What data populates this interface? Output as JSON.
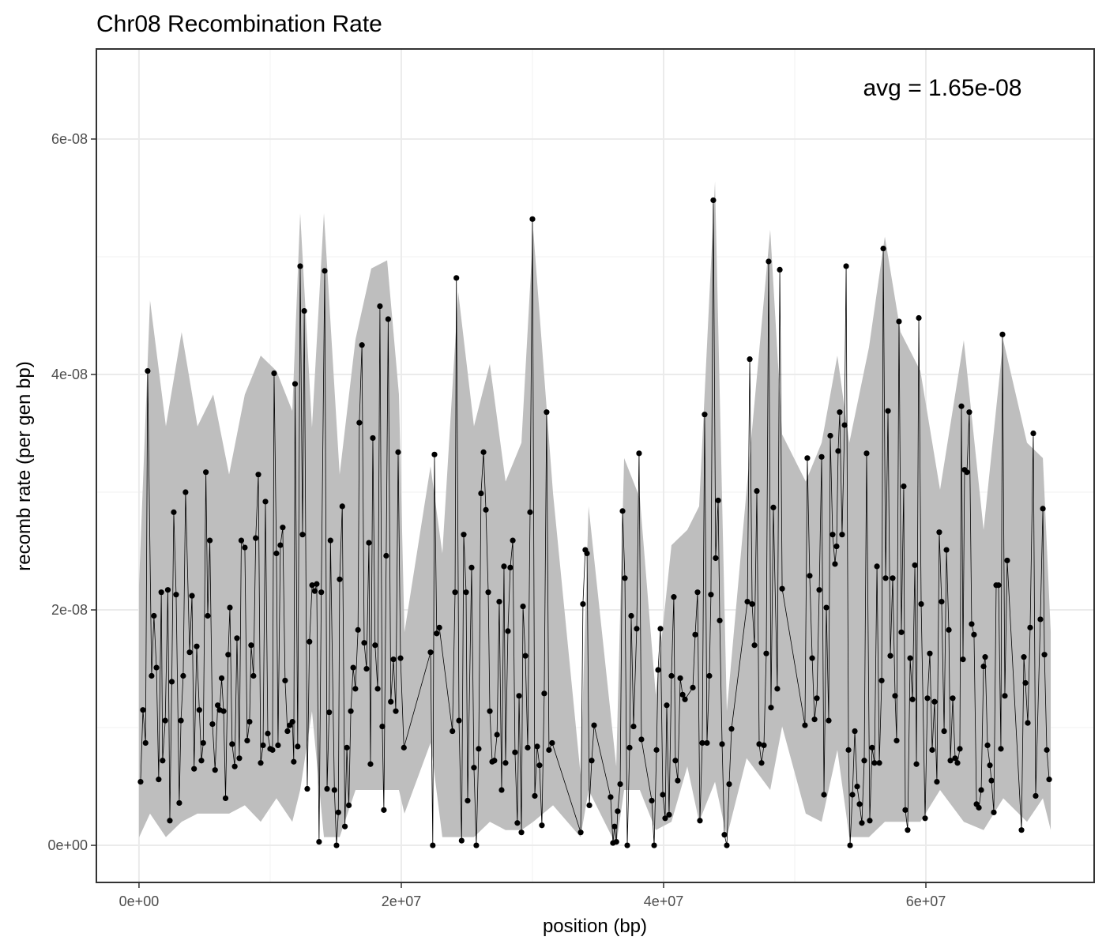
{
  "chart_data": {
    "type": "line",
    "title": "Chr08 Recombination Rate",
    "xlabel": "position (bp)",
    "ylabel": "recomb rate (per gen bp)",
    "annotation": "avg = 1.65e-08",
    "color": "#000000",
    "grid": true,
    "xlim": [
      -3250000,
      72830000
    ],
    "ylim": [
      -3.15e-09,
      6.765e-08
    ],
    "xticks": [
      {
        "value": 0,
        "label": "0e+00"
      },
      {
        "value": 20000000,
        "label": "2e+07"
      },
      {
        "value": 40000000,
        "label": "4e+07"
      },
      {
        "value": 60000000,
        "label": "6e+07"
      }
    ],
    "yticks": [
      {
        "value": 0,
        "label": "0e+00"
      },
      {
        "value": 2e-08,
        "label": "2e-08"
      },
      {
        "value": 4e-08,
        "label": "4e-08"
      },
      {
        "value": 6e-08,
        "label": "6e-08"
      }
    ],
    "x": [
      120000.0,
      300000.0,
      500000.0,
      660000.0,
      960000.0,
      1140000.0,
      1330000.0,
      1500000.0,
      1700000.0,
      1800000.0,
      2000000.0,
      2200000.0,
      2350000.0,
      2500000.0,
      2650000.0,
      2830000.0,
      3070000.0,
      3200000.0,
      3370000.0,
      3550000.0,
      3860000.0,
      4040000.0,
      4200000.0,
      4400000.0,
      4600000.0,
      4760000.0,
      4900000.0,
      5100000.0,
      5240000.0,
      5400000.0,
      5600000.0,
      5800000.0,
      6000000.0,
      6150000.0,
      6300000.0,
      6450000.0,
      6600000.0,
      6800000.0,
      6930000.0,
      7100000.0,
      7300000.0,
      7470000.0,
      7650000.0,
      7800000.0,
      8070000.0,
      8250000.0,
      8430000.0,
      8550000.0,
      8730000.0,
      8900000.0,
      9100000.0,
      9280000.0,
      9460000.0,
      9640000.0,
      9820000.0,
      10000000.0,
      10180000.0,
      10300000.0,
      10480000.0,
      10600000.0,
      10780000.0,
      10960000.0,
      11140000.0,
      11320000.0,
      11500000.0,
      11700000.0,
      11800000.0,
      11900000.0,
      12100000.0,
      12290000.0,
      12470000.0,
      12600000.0,
      12830000.0,
      13000000.0,
      13200000.0,
      13400000.0,
      13550000.0,
      13730000.0,
      13900000.0,
      14160000.0,
      14340000.0,
      14500000.0,
      14600000.0,
      14900000.0,
      15060000.0,
      15200000.0,
      15300000.0,
      15500000.0,
      15700000.0,
      15850000.0,
      16000000.0,
      16150000.0,
      16330000.0,
      16500000.0,
      16700000.0,
      16800000.0,
      17000000.0,
      17170000.0,
      17350000.0,
      17530000.0,
      17650000.0,
      17830000.0,
      18000000.0,
      18200000.0,
      18370000.0,
      18550000.0,
      18670000.0,
      18850000.0,
      19000000.0,
      19200000.0,
      19400000.0,
      19580000.0,
      19760000.0,
      19940000.0,
      20200000.0,
      22230000.0,
      22400000.0,
      22530000.0,
      22700000.0,
      22900000.0,
      23900000.0,
      24100000.0,
      24200000.0,
      24400000.0,
      24600000.0,
      24760000.0,
      24940000.0,
      25060000.0,
      25360000.0,
      25540000.0,
      25720000.0,
      25900000.0,
      26080000.0,
      26270000.0,
      26450000.0,
      26630000.0,
      26750000.0,
      26930000.0,
      27100000.0,
      27300000.0,
      27470000.0,
      27650000.0,
      27830000.0,
      27950000.0,
      28130000.0,
      28310000.0,
      28500000.0,
      28670000.0,
      28850000.0,
      28980000.0,
      29160000.0,
      29280000.0,
      29460000.0,
      29640000.0,
      29820000.0,
      30000000.0,
      30180000.0,
      30360000.0,
      30540000.0,
      30720000.0,
      30900000.0,
      31080000.0,
      31260000.0,
      31500000.0,
      33680000.0,
      33850000.0,
      34030000.0,
      34160000.0,
      34340000.0,
      34520000.0,
      34700000.0,
      35960000.0,
      36140000.0,
      36260000.0,
      36400000.0,
      36500000.0,
      36690000.0,
      36870000.0,
      37050000.0,
      37230000.0,
      37410000.0,
      37530000.0,
      37710000.0,
      37950000.0,
      38130000.0,
      38310000.0,
      39100000.0,
      39280000.0,
      39460000.0,
      39580000.0,
      39760000.0,
      39940000.0,
      40120000.0,
      40240000.0,
      40420000.0,
      40600000.0,
      40780000.0,
      40900000.0,
      41080000.0,
      41270000.0,
      41450000.0,
      41630000.0,
      42230000.0,
      42410000.0,
      42590000.0,
      42770000.0,
      42950000.0,
      43130000.0,
      43310000.0,
      43490000.0,
      43610000.0,
      43790000.0,
      43970000.0,
      44160000.0,
      44280000.0,
      44460000.0,
      44640000.0,
      44820000.0,
      45000000.0,
      45180000.0,
      46390000.0,
      46570000.0,
      46750000.0,
      46930000.0,
      47110000.0,
      47290000.0,
      47470000.0,
      47650000.0,
      47830000.0,
      48010000.0,
      48190000.0,
      48370000.0,
      48670000.0,
      48860000.0,
      49040000.0,
      50780000.0,
      50960000.0,
      51140000.0,
      51330000.0,
      51510000.0,
      51690000.0,
      51870000.0,
      52050000.0,
      52230000.0,
      52410000.0,
      52590000.0,
      52710000.0,
      52890000.0,
      53070000.0,
      53190000.0,
      53310000.0,
      53430000.0,
      53610000.0,
      53800000.0,
      53920000.0,
      54100000.0,
      54220000.0,
      54400000.0,
      54580000.0,
      54760000.0,
      54940000.0,
      55120000.0,
      55300000.0,
      55480000.0,
      55720000.0,
      55900000.0,
      56080000.0,
      56270000.0,
      56450000.0,
      56630000.0,
      56750000.0,
      56930000.0,
      57110000.0,
      57290000.0,
      57470000.0,
      57650000.0,
      57770000.0,
      57950000.0,
      58130000.0,
      58310000.0,
      58430000.0,
      58610000.0,
      58800000.0,
      58980000.0,
      59160000.0,
      59280000.0,
      59460000.0,
      59640000.0,
      59940000.0,
      60120000.0,
      60300000.0,
      60480000.0,
      60660000.0,
      60840000.0,
      61020000.0,
      61200000.0,
      61390000.0,
      61570000.0,
      61750000.0,
      61870000.0,
      62050000.0,
      62230000.0,
      62410000.0,
      62590000.0,
      62710000.0,
      62830000.0,
      62950000.0,
      63130000.0,
      63310000.0,
      63490000.0,
      63670000.0,
      63860000.0,
      64040000.0,
      64220000.0,
      64400000.0,
      64520000.0,
      64700000.0,
      64880000.0,
      65000000.0,
      65180000.0,
      65360000.0,
      65540000.0,
      65720000.0,
      65840000.0,
      66020000.0,
      66200000.0,
      67290000.0,
      67470000.0,
      67590000.0,
      67770000.0,
      67950000.0,
      68190000.0,
      68370000.0,
      68730000.0,
      68920000.0,
      69040000.0,
      69220000.0,
      69400000.0
    ],
    "values": [
      5.4e-09,
      1.15e-08,
      8.7e-09,
      4.03e-08,
      1.44e-08,
      1.95e-08,
      1.51e-08,
      5.6e-09,
      2.15e-08,
      7.2e-09,
      1.06e-08,
      2.17e-08,
      2.1e-09,
      1.39e-08,
      2.83e-08,
      2.13e-08,
      3.6e-09,
      1.06e-08,
      1.44e-08,
      3e-08,
      1.64e-08,
      2.12e-08,
      6.5e-09,
      1.69e-08,
      1.15e-08,
      7.2e-09,
      8.7e-09,
      3.17e-08,
      1.95e-08,
      2.59e-08,
      1.03e-08,
      6.4e-09,
      1.19e-08,
      1.15e-08,
      1.42e-08,
      1.14e-08,
      4e-09,
      1.62e-08,
      2.02e-08,
      8.6e-09,
      6.7e-09,
      1.76e-08,
      7.4e-09,
      2.59e-08,
      2.53e-08,
      8.9e-09,
      1.05e-08,
      1.7e-08,
      1.44e-08,
      2.61e-08,
      3.15e-08,
      7e-09,
      8.5e-09,
      2.92e-08,
      9.5e-09,
      8.2e-09,
      8.1e-09,
      4.01e-08,
      2.48e-08,
      8.5e-09,
      2.55e-08,
      2.7e-08,
      1.4e-08,
      9.7e-09,
      1.02e-08,
      1.05e-08,
      7.1e-09,
      3.92e-08,
      8.4e-09,
      4.92e-08,
      2.64e-08,
      4.54e-08,
      4.8e-09,
      1.73e-08,
      2.21e-08,
      2.16e-08,
      2.22e-08,
      3e-10,
      2.15e-08,
      4.88e-08,
      4.8e-09,
      1.13e-08,
      2.59e-08,
      4.7e-09,
      0,
      2.8e-09,
      2.26e-08,
      2.88e-08,
      1.6e-09,
      8.3e-09,
      3.4e-09,
      1.14e-08,
      1.51e-08,
      1.33e-08,
      1.83e-08,
      3.59e-08,
      4.25e-08,
      1.72e-08,
      1.5e-08,
      2.57e-08,
      6.9e-09,
      3.46e-08,
      1.7e-08,
      1.33e-08,
      4.58e-08,
      1.01e-08,
      3e-09,
      2.46e-08,
      4.47e-08,
      1.22e-08,
      1.58e-08,
      1.14e-08,
      3.34e-08,
      1.59e-08,
      8.3e-09,
      1.64e-08,
      0,
      3.32e-08,
      1.8e-08,
      1.85e-08,
      9.7e-09,
      2.15e-08,
      4.82e-08,
      1.06e-08,
      4e-10,
      2.64e-08,
      2.15e-08,
      3.8e-09,
      2.36e-08,
      6.6e-09,
      0,
      8.2e-09,
      2.99e-08,
      3.34e-08,
      2.85e-08,
      2.15e-08,
      1.14e-08,
      7.1e-09,
      7.2e-09,
      9.4e-09,
      2.07e-08,
      4.7e-09,
      2.37e-08,
      7e-09,
      1.82e-08,
      2.36e-08,
      2.59e-08,
      7.9e-09,
      1.9e-09,
      1.27e-08,
      1.1e-09,
      2.03e-08,
      1.61e-08,
      8.3e-09,
      2.83e-08,
      5.32e-08,
      4.2e-09,
      8.4e-09,
      6.8e-09,
      1.7e-09,
      1.29e-08,
      3.68e-08,
      8.1e-09,
      8.7e-09,
      1.1e-09,
      2.05e-08,
      2.51e-08,
      2.48e-08,
      3.4e-09,
      7.2e-09,
      1.02e-08,
      4.1e-09,
      2e-10,
      1.6e-09,
      3e-10,
      2.9e-09,
      5.2e-09,
      2.84e-08,
      2.27e-08,
      0,
      8.3e-09,
      1.95e-08,
      1.01e-08,
      1.84e-08,
      3.33e-08,
      9e-09,
      3.8e-09,
      0,
      8.1e-09,
      1.49e-08,
      1.84e-08,
      4.3e-09,
      2.3e-09,
      1.19e-08,
      2.6e-09,
      1.44e-08,
      2.11e-08,
      7.2e-09,
      5.5e-09,
      1.42e-08,
      1.28e-08,
      1.24e-08,
      1.34e-08,
      1.79e-08,
      2.15e-08,
      2.1e-09,
      8.7e-09,
      3.66e-08,
      8.7e-09,
      1.44e-08,
      2.13e-08,
      5.48e-08,
      2.44e-08,
      2.93e-08,
      1.91e-08,
      8.6e-09,
      9e-10,
      0,
      5.2e-09,
      9.9e-09,
      2.07e-08,
      4.13e-08,
      2.05e-08,
      1.7e-08,
      3.01e-08,
      8.6e-09,
      7e-09,
      8.5e-09,
      1.63e-08,
      4.96e-08,
      1.17e-08,
      2.87e-08,
      1.33e-08,
      4.89e-08,
      2.18e-08,
      1.02e-08,
      3.29e-08,
      2.29e-08,
      1.59e-08,
      1.07e-08,
      1.25e-08,
      2.17e-08,
      3.3e-08,
      4.3e-09,
      2.02e-08,
      1.06e-08,
      3.48e-08,
      2.64e-08,
      2.39e-08,
      2.54e-08,
      3.35e-08,
      3.68e-08,
      2.64e-08,
      3.57e-08,
      4.92e-08,
      8.1e-09,
      0,
      4.3e-09,
      9.7e-09,
      5e-09,
      3.5e-09,
      1.9e-09,
      7.2e-09,
      3.33e-08,
      2.1e-09,
      8.3e-09,
      7e-09,
      2.37e-08,
      7e-09,
      1.4e-08,
      5.07e-08,
      2.27e-08,
      3.69e-08,
      1.61e-08,
      2.27e-08,
      1.27e-08,
      8.9e-09,
      4.45e-08,
      1.81e-08,
      3.05e-08,
      3e-09,
      1.3e-09,
      1.59e-08,
      1.24e-08,
      2.38e-08,
      6.9e-09,
      4.48e-08,
      2.05e-08,
      2.3e-09,
      1.25e-08,
      1.63e-08,
      8.1e-09,
      1.22e-08,
      5.4e-09,
      2.66e-08,
      2.07e-08,
      9.7e-09,
      2.51e-08,
      1.83e-08,
      7.2e-09,
      1.25e-08,
      7.4e-09,
      7e-09,
      8.2e-09,
      3.73e-08,
      1.58e-08,
      3.19e-08,
      3.17e-08,
      3.68e-08,
      1.88e-08,
      1.79e-08,
      3.5e-09,
      3.2e-09,
      4.7e-09,
      1.52e-08,
      1.6e-08,
      8.5e-09,
      6.8e-09,
      5.5e-09,
      2.8e-09,
      2.21e-08,
      2.21e-08,
      8.2e-09,
      4.34e-08,
      1.27e-08,
      2.42e-08,
      1.3e-09,
      1.6e-08,
      1.38e-08,
      1.04e-08,
      1.85e-08,
      3.5e-08,
      4.2e-09,
      1.92e-08,
      2.86e-08,
      1.62e-08,
      8.1e-09,
      5.6e-09
    ],
    "ribbon": {
      "color": "#bebebe",
      "x": [
        0,
        840000.0,
        2050000.0,
        3250000.0,
        4460000.0,
        5660000.0,
        6870000.0,
        8070000.0,
        9280000.0,
        10480000.0,
        11690000.0,
        12290000.0,
        13190000.0,
        14100000.0,
        15300000.0,
        16510000.0,
        17710000.0,
        18920000.0,
        19820000.0,
        20240000.0,
        22230000.0,
        23130000.0,
        24340000.0,
        25540000.0,
        26750000.0,
        27950000.0,
        29160000.0,
        30060000.0,
        31570000.0,
        33670000.0,
        34280000.0,
        36390000.0,
        36990000.0,
        38190000.0,
        39400000.0,
        40600000.0,
        41810000.0,
        42710000.0,
        43920000.0,
        44820000.0,
        46330000.0,
        48130000.0,
        49040000.0,
        50840000.0,
        52050000.0,
        53250000.0,
        54160000.0,
        55660000.0,
        56870000.0,
        58070000.0,
        59580000.0,
        61080000.0,
        62890000.0,
        64400000.0,
        65900000.0,
        67710000.0,
        68920000.0,
        69520000.0
      ],
      "lower": [
        6.7e-10,
        2.7e-09,
        7e-10,
        2e-09,
        2.7e-09,
        2.7e-09,
        2.7e-09,
        3.4e-09,
        2e-09,
        4e-09,
        2e-09,
        4.7e-09,
        1.14e-08,
        7e-10,
        7e-10,
        4.7e-09,
        4.7e-09,
        4.7e-09,
        4.7e-09,
        2.7e-09,
        8.7e-09,
        7e-10,
        7e-10,
        7e-10,
        2e-09,
        1.3e-09,
        1.3e-09,
        2e-09,
        3.4e-09,
        7e-10,
        4.7e-09,
        0,
        4.7e-09,
        4.7e-09,
        1.3e-09,
        2e-09,
        6.7e-09,
        2e-09,
        5.4e-09,
        7e-10,
        7.4e-09,
        4.7e-09,
        1.01e-08,
        2.7e-09,
        2e-09,
        8.1e-09,
        7e-10,
        7e-10,
        2e-09,
        2e-09,
        2e-09,
        4.7e-09,
        2e-09,
        1.3e-09,
        4e-09,
        2e-09,
        4e-09,
        1.3e-09
      ],
      "upper": [
        2.21e-08,
        4.63e-08,
        3.56e-08,
        4.36e-08,
        3.56e-08,
        3.83e-08,
        3.15e-08,
        3.83e-08,
        4.16e-08,
        4.03e-08,
        3.69e-08,
        5.37e-08,
        3.55e-08,
        5.37e-08,
        3.15e-08,
        4.3e-08,
        4.9e-08,
        4.97e-08,
        3.83e-08,
        1.81e-08,
        3.22e-08,
        2.48e-08,
        4.7e-08,
        3.56e-08,
        4.09e-08,
        3.09e-08,
        3.42e-08,
        5.23e-08,
        2.99e-08,
        6e-09,
        2.88e-08,
        6.7e-09,
        3.29e-08,
        2.95e-08,
        1.28e-08,
        2.55e-08,
        2.68e-08,
        2.88e-08,
        5.64e-08,
        1.14e-08,
        3.02e-08,
        5.23e-08,
        3.49e-08,
        3.09e-08,
        3.42e-08,
        4.16e-08,
        3.42e-08,
        4.23e-08,
        5.17e-08,
        4.36e-08,
        4.03e-08,
        3.02e-08,
        4.29e-08,
        2.68e-08,
        4.29e-08,
        3.42e-08,
        3.29e-08,
        1.81e-08
      ]
    }
  }
}
